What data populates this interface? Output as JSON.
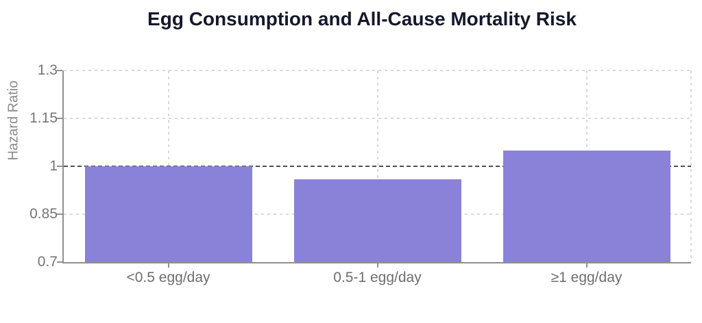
{
  "chart_data": {
    "type": "bar",
    "title": "Egg Consumption and All-Cause Mortality Risk",
    "categories": [
      "<0.5 egg/day",
      "0.5-1 egg/day",
      "≥1 egg/day"
    ],
    "values": [
      1.0,
      0.96,
      1.05
    ],
    "xlabel": "",
    "ylabel": "Hazard Ratio",
    "ylim": [
      0.7,
      1.3
    ],
    "yticks": [
      0.7,
      0.85,
      1,
      1.15,
      1.3
    ],
    "ytick_labels": [
      "0.7",
      "0.85",
      "1",
      "1.15",
      "1.3"
    ],
    "reference_line": 1,
    "grid": true,
    "legend": false,
    "colors": {
      "bar": "#8a82d8",
      "title_text": "#14182b",
      "axis_line": "#8f8f8f",
      "tick_text": "#757575",
      "grid_light": "#d9d9d9",
      "reference_dashed": "#4d4d4d",
      "background": "#ffffff"
    }
  }
}
